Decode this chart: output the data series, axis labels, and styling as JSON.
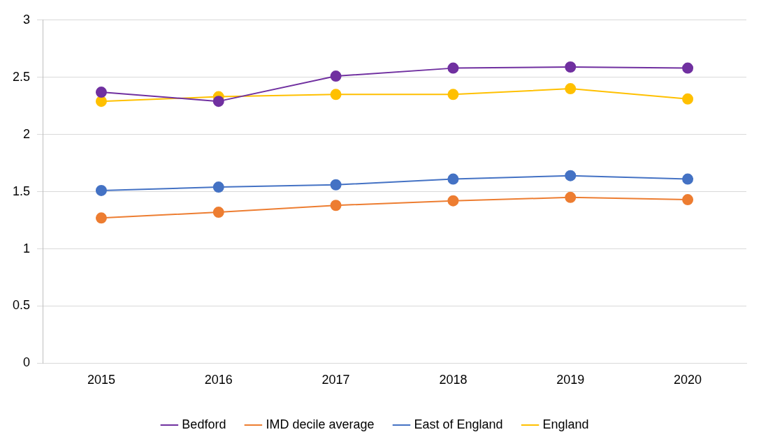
{
  "chart_data": {
    "type": "line",
    "categories": [
      "2015",
      "2016",
      "2017",
      "2018",
      "2019",
      "2020"
    ],
    "series": [
      {
        "name": "Bedford",
        "color": "#7030a0",
        "values": [
          2.37,
          2.29,
          2.51,
          2.58,
          2.59,
          2.58
        ]
      },
      {
        "name": "IMD decile average",
        "color": "#ed7d31",
        "values": [
          1.27,
          1.32,
          1.38,
          1.42,
          1.45,
          1.43
        ]
      },
      {
        "name": "East of England",
        "color": "#4472c4",
        "values": [
          1.51,
          1.54,
          1.56,
          1.61,
          1.64,
          1.61
        ]
      },
      {
        "name": "England",
        "color": "#ffc000",
        "values": [
          2.29,
          2.33,
          2.35,
          2.35,
          2.4,
          2.31
        ]
      }
    ],
    "ylim": [
      0,
      3
    ],
    "yticks": [
      0,
      0.5,
      1,
      1.5,
      2,
      2.5,
      3
    ],
    "grid": "y",
    "legend": "bottom",
    "marker": "circle",
    "line_style": "solid"
  }
}
